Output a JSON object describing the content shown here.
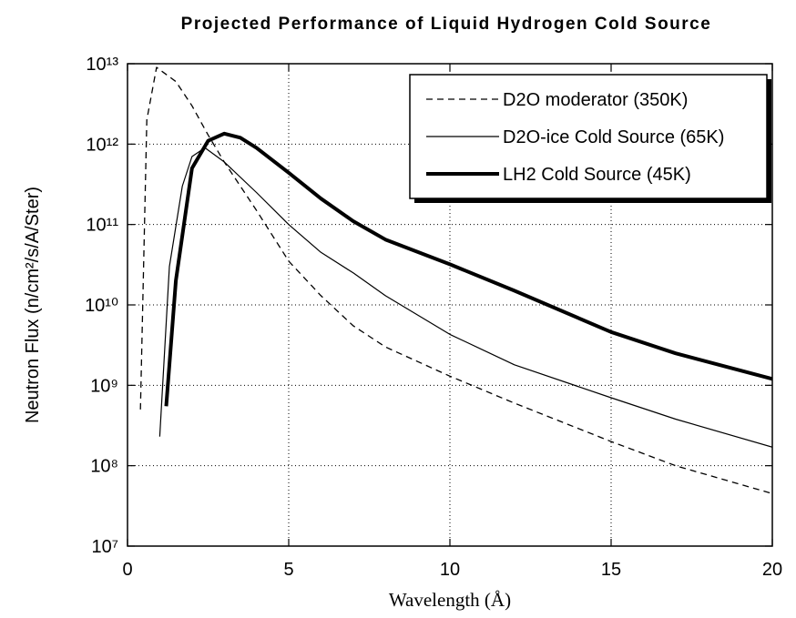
{
  "chart_data": {
    "type": "line",
    "title": "Projected Performance of Liquid Hydrogen Cold Source",
    "x_label": "Wavelength (Å)",
    "y_label": "Neutron Flux (n/cm²/s/A/Ster)",
    "xlim": [
      0,
      20
    ],
    "xticks": [
      0,
      5,
      10,
      15,
      20
    ],
    "ylim": [
      10000000.0,
      10000000000000.0
    ],
    "yticks": [
      {
        "value": 10000000.0,
        "label": "10⁷"
      },
      {
        "value": 100000000.0,
        "label": "10⁸"
      },
      {
        "value": 1000000000.0,
        "label": "10⁹"
      },
      {
        "value": 10000000000.0,
        "label": "10¹⁰"
      },
      {
        "value": 100000000000.0,
        "label": "10¹¹"
      },
      {
        "value": 1000000000000.0,
        "label": "10¹²"
      },
      {
        "value": 10000000000000.0,
        "label": "10¹³"
      }
    ],
    "y_scale": "log",
    "grid": true,
    "legend": "upper right",
    "series": [
      {
        "name": "D2O moderator (350K)",
        "color": "#000000",
        "style": "dashed",
        "line_width": 1.3,
        "x": [
          0.4,
          0.6,
          0.9,
          1.5,
          2,
          2.5,
          3,
          4,
          5,
          6,
          7,
          8,
          10,
          12,
          15,
          17,
          20
        ],
        "values": [
          500000000.0,
          2000000000000.0,
          9000000000000.0,
          6000000000000.0,
          3000000000000.0,
          1300000000000.0,
          600000000000.0,
          150000000000.0,
          35000000000.0,
          13000000000.0,
          5500000000.0,
          3000000000.0,
          1300000000.0,
          600000000.0,
          200000000.0,
          100000000.0,
          45000000.0
        ]
      },
      {
        "name": "D2O-ice Cold Source (65K)",
        "color": "#000000",
        "style": "solid",
        "line_width": 1.2,
        "x": [
          1.0,
          1.3,
          1.7,
          2,
          2.4,
          3,
          4,
          5,
          6,
          7,
          8,
          10,
          12,
          15,
          17,
          20
        ],
        "values": [
          230000000.0,
          30000000000.0,
          300000000000.0,
          700000000000.0,
          900000000000.0,
          600000000000.0,
          250000000000.0,
          100000000000.0,
          45000000000.0,
          25000000000.0,
          13000000000.0,
          4300000000.0,
          1800000000.0,
          700000000.0,
          380000000.0,
          170000000.0
        ]
      },
      {
        "name": "LH2 Cold Source (45K)",
        "color": "#000000",
        "style": "solid",
        "line_width": 4,
        "x": [
          1.2,
          1.5,
          2,
          2.5,
          3,
          3.5,
          4,
          5,
          6,
          7,
          8,
          10,
          12,
          15,
          17,
          20
        ],
        "values": [
          550000000.0,
          20000000000.0,
          500000000000.0,
          1100000000000.0,
          1350000000000.0,
          1200000000000.0,
          900000000000.0,
          440000000000.0,
          210000000000.0,
          110000000000.0,
          65000000000.0,
          32000000000.0,
          15000000000.0,
          4600000000.0,
          2500000000.0,
          1200000000.0
        ]
      }
    ]
  }
}
